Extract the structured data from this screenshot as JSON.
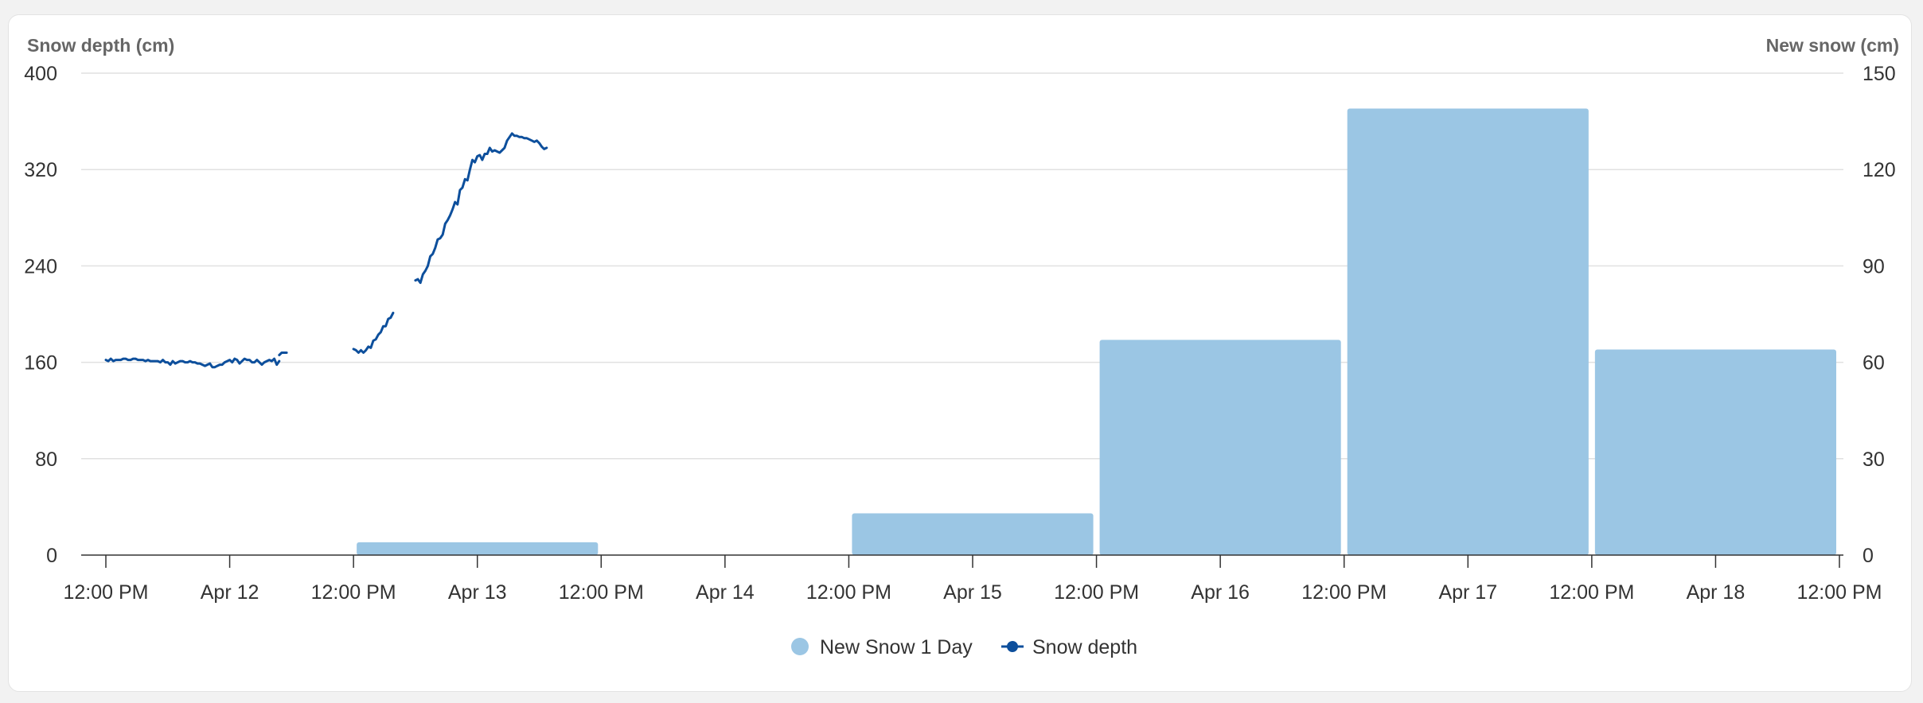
{
  "chart_data": {
    "type": "bar+line",
    "left_axis": {
      "label": "Snow depth (cm)",
      "min": 0,
      "max": 400,
      "ticks": [
        0,
        80,
        160,
        240,
        320,
        400
      ]
    },
    "right_axis": {
      "label": "New snow (cm)",
      "min": 0,
      "max": 150,
      "ticks": [
        0,
        30,
        60,
        90,
        120,
        150
      ]
    },
    "x_axis": {
      "type": "datetime",
      "min": "Apr 11 12:00 PM",
      "max": "Apr 18 12:00 PM",
      "tick_labels": [
        "12:00 PM",
        "Apr 12",
        "12:00 PM",
        "Apr 13",
        "12:00 PM",
        "Apr 14",
        "12:00 PM",
        "Apr 15",
        "12:00 PM",
        "Apr 16",
        "12:00 PM",
        "Apr 17",
        "12:00 PM",
        "Apr 18",
        "12:00 PM"
      ]
    },
    "grid": true,
    "legend": {
      "placement": "bottom-center"
    },
    "colors": {
      "bars": "#9bc6e4",
      "line": "#0d4f9c"
    },
    "series": [
      {
        "name": "New Snow 1 Day",
        "type": "bar",
        "axis": "right",
        "points": [
          {
            "date": "Apr 13",
            "value": 4
          },
          {
            "date": "Apr 15",
            "value": 13
          },
          {
            "date": "Apr 16",
            "value": 67
          },
          {
            "date": "Apr 17",
            "value": 139
          },
          {
            "date": "Apr 18",
            "value": 64
          }
        ]
      },
      {
        "name": "Snow depth",
        "type": "line",
        "axis": "left",
        "segments": [
          {
            "start_days": 0.0,
            "step_days": 0.1,
            "values": [
              162,
              161,
              163,
              161,
              162,
              162,
              162,
              163,
              163,
              162,
              162,
              163,
              163,
              162,
              162,
              162,
              161,
              162,
              161,
              161,
              161,
              161,
              160,
              162,
              160,
              160,
              158,
              161,
              159,
              160,
              161,
              161,
              160,
              160,
              161,
              160,
              160,
              159,
              159,
              158,
              157,
              158,
              159,
              156,
              156,
              157,
              158,
              158,
              160,
              161,
              162,
              160,
              163,
              162,
              159,
              161,
              163,
              162,
              162,
              160,
              160,
              162,
              160,
              158,
              160,
              161,
              162,
              161,
              163,
              158,
              161
            ]
          },
          {
            "start_days": 7.0,
            "step_days": 0.1,
            "values": [
              166,
              168,
              168,
              168
            ]
          },
          {
            "start_days": 10.0,
            "step_days": 0.1,
            "values": [
              171,
              170,
              168,
              170,
              168,
              170,
              173,
              172,
              178,
              179,
              183,
              185,
              190,
              190,
              196,
              197,
              201
            ]
          },
          {
            "start_days": 12.5,
            "step_days": 0.1,
            "values": [
              228,
              229,
              226,
              233,
              236,
              240,
              248,
              250,
              255,
              262,
              263,
              266,
              275,
              278,
              282,
              287,
              293,
              291,
              303,
              305,
              312,
              311,
              320,
              328,
              326,
              331,
              332,
              328,
              333,
              333,
              338,
              335,
              336,
              335,
              334,
              336,
              338,
              344,
              347,
              350,
              348,
              348,
              347,
              347,
              346,
              346,
              345,
              344,
              343,
              344,
              342,
              339,
              337,
              338
            ]
          }
        ]
      }
    ]
  }
}
